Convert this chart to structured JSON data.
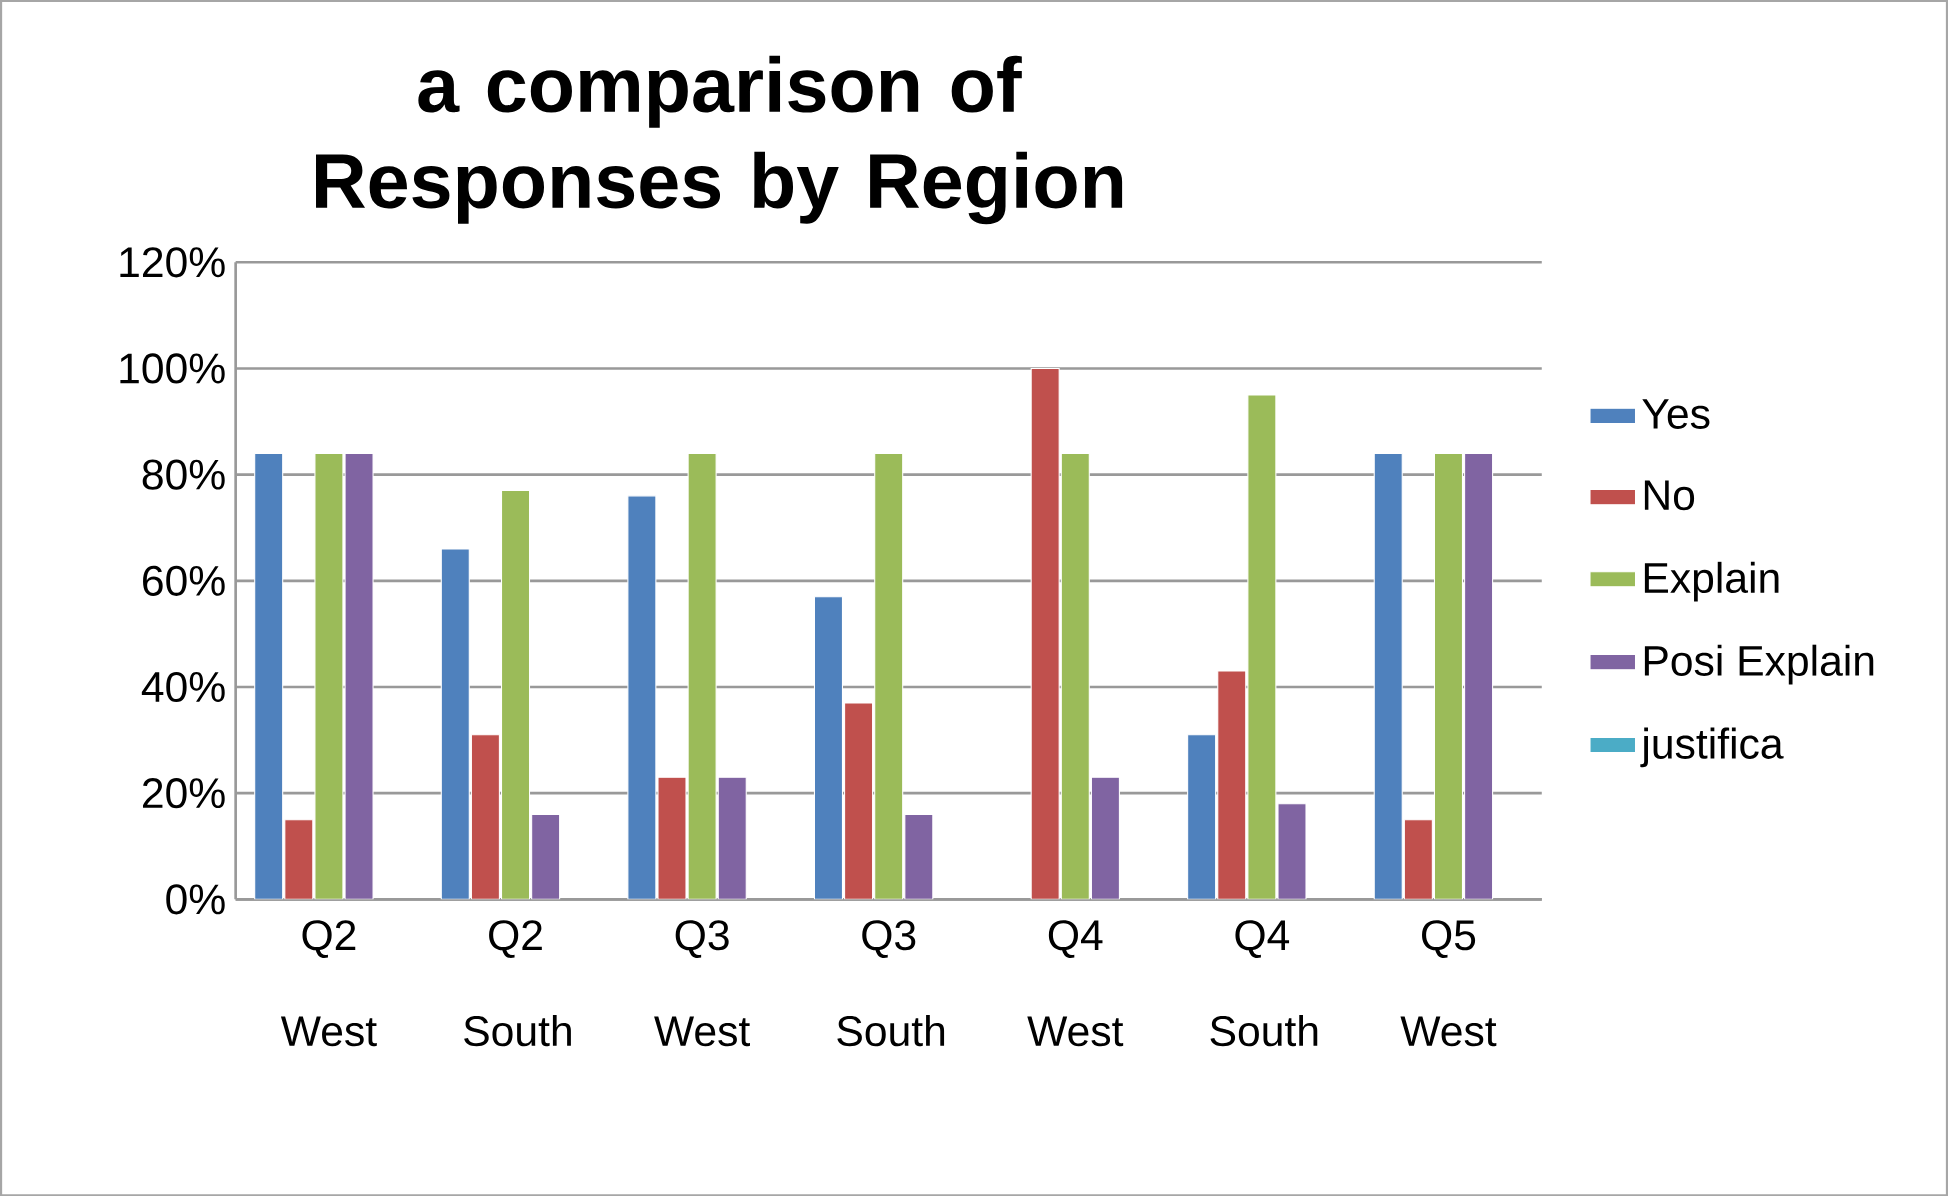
{
  "chart_data": {
    "type": "bar",
    "title": "a comparison of Responses by Region",
    "categories": [
      "Q2 West",
      "Q2 South",
      "Q3 West",
      "Q3 South",
      "Q4 West",
      "Q4 South",
      "Q5 West"
    ],
    "series": [
      {
        "name": "Yes",
        "color": "#4f81bd",
        "values": [
          84,
          66,
          76,
          57,
          null,
          31,
          84
        ]
      },
      {
        "name": "No",
        "color": "#c0504d",
        "values": [
          15,
          31,
          23,
          37,
          100,
          43,
          15
        ]
      },
      {
        "name": "Explain",
        "color": "#9bbb59",
        "values": [
          84,
          77,
          84,
          84,
          84,
          95,
          84
        ]
      },
      {
        "name": "Posi Explain",
        "color": "#8064a2",
        "values": [
          84,
          16,
          23,
          16,
          23,
          18,
          84
        ]
      },
      {
        "name": "justifica",
        "color": "#4bacc6",
        "values": [
          null,
          null,
          null,
          null,
          null,
          null,
          null
        ]
      }
    ],
    "ylim": [
      0,
      120
    ],
    "yticks": [
      {
        "value": 0,
        "label": "0%"
      },
      {
        "value": 20,
        "label": "20%"
      },
      {
        "value": 40,
        "label": "40%"
      },
      {
        "value": 60,
        "label": "60%"
      },
      {
        "value": 80,
        "label": "80%"
      },
      {
        "value": 100,
        "label": "100%"
      },
      {
        "value": 120,
        "label": "120%"
      }
    ],
    "grid": "y",
    "legend": "right"
  }
}
